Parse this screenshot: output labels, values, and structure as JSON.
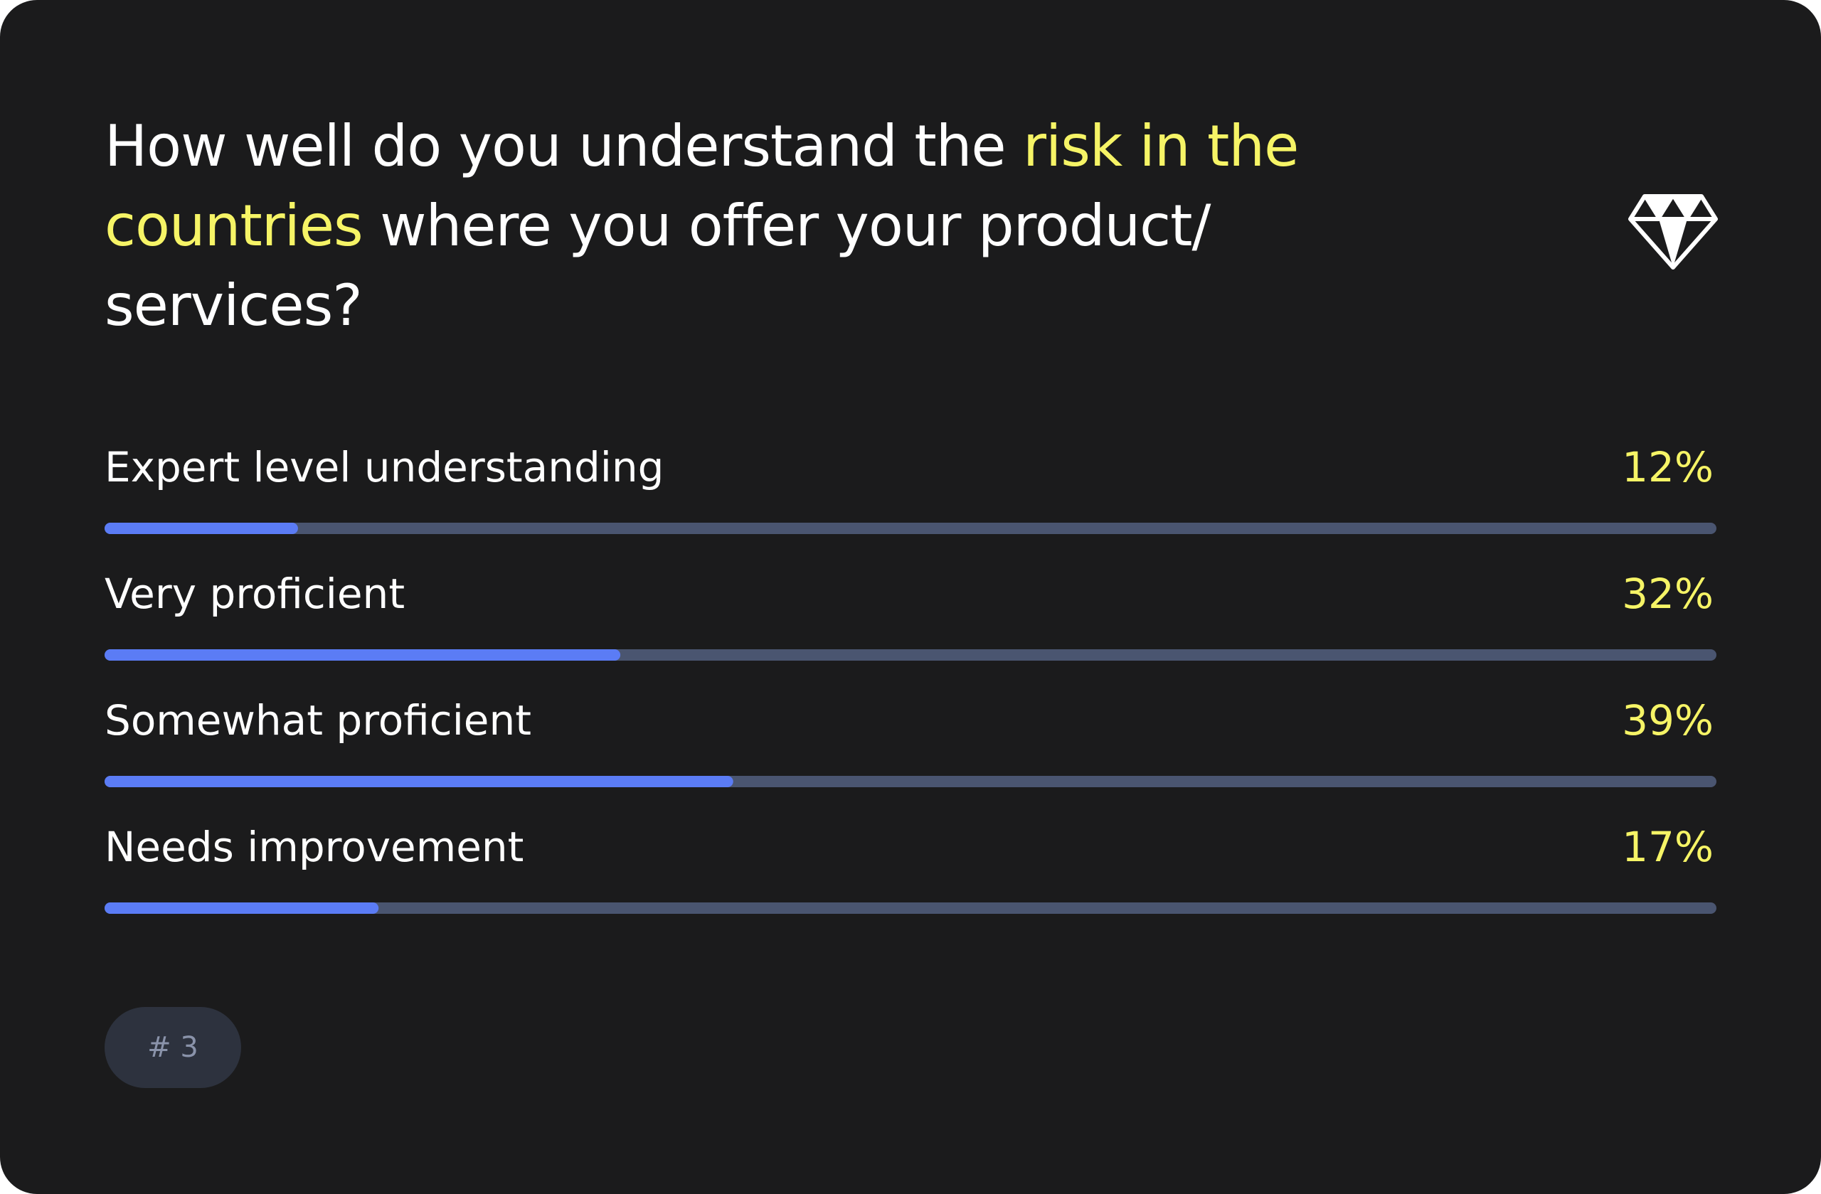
{
  "chart_data": {
    "type": "bar",
    "title": [
      "How well do you understand the",
      "risk in the countries",
      "where you offer your product/ services?"
    ],
    "title_colors": [
      "#ffffff",
      "#f6f466",
      "#ffffff"
    ],
    "categories": [
      "Expert level understanding",
      "Very proficient",
      "Somewhat proficient",
      "Needs improvement"
    ],
    "values": [
      12,
      32,
      39,
      17
    ],
    "value_labels": [
      "12%",
      "32%",
      "39%",
      "17%"
    ],
    "xlim": [
      0,
      100
    ],
    "color": "#5b7cf5",
    "track_color": "#4a5570",
    "label_color": "#ffffff",
    "value_label_color": "#f6f466"
  },
  "badge": "# 3"
}
